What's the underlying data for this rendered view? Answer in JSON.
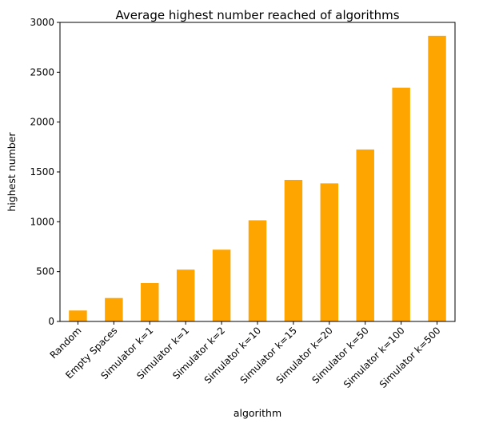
{
  "chart_data": {
    "type": "bar",
    "title": "Average highest number reached of algorithms",
    "xlabel": "algorithm",
    "ylabel": "highest number",
    "categories": [
      "Random",
      "Empty Spaces",
      "Simulator k=1",
      "Simulator k=1",
      "Simulator k=2",
      "Simulator k=10",
      "Simulator k=15",
      "Simulator k=20",
      "Simulator k=50",
      "Simulator k=100",
      "Simulator k=500"
    ],
    "values": [
      110,
      235,
      385,
      520,
      720,
      1015,
      1420,
      1385,
      1725,
      2345,
      2865
    ],
    "ylim": [
      0,
      3000
    ],
    "yticks": [
      0,
      500,
      1000,
      1500,
      2000,
      2500,
      3000
    ],
    "grid": false,
    "legend": "none",
    "bar_color": "#ffa500"
  }
}
